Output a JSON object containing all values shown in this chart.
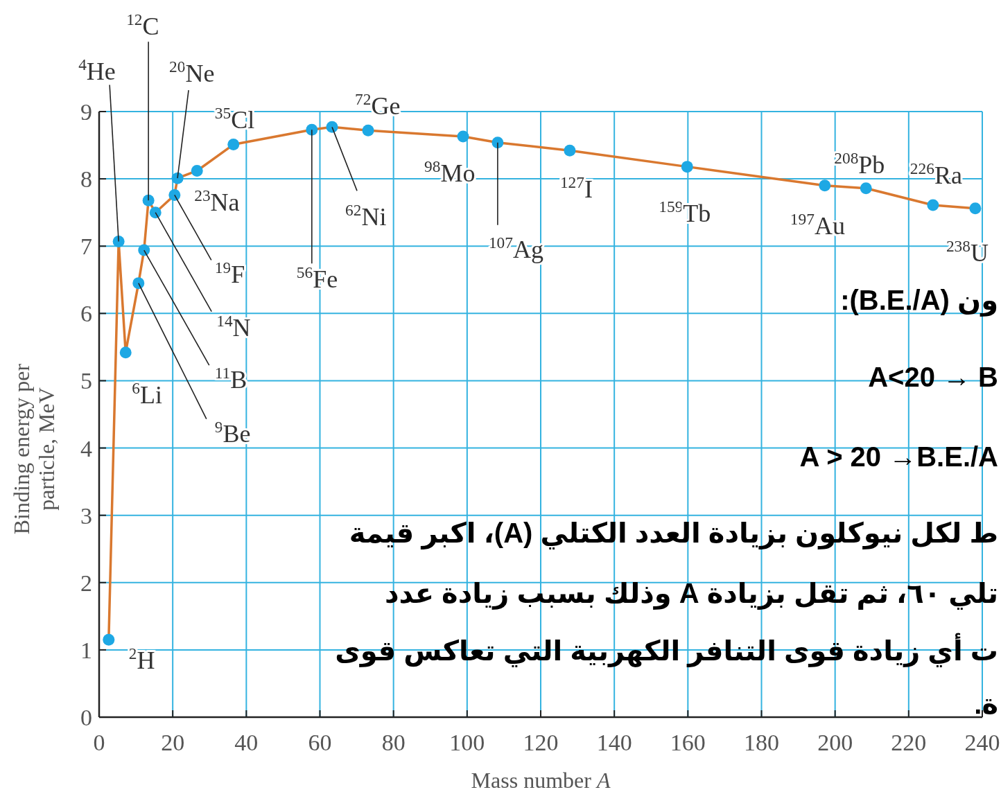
{
  "chart_data": {
    "type": "line",
    "xlabel": "Mass number A",
    "ylabel": "Binding energy per\nparticle, MeV",
    "x": [
      2.6,
      5.3,
      7.2,
      10.7,
      12.2,
      13.4,
      15.3,
      20.5,
      21.3,
      26.6,
      36.5,
      57.8,
      63.3,
      73.1,
      98.9,
      108.3,
      127.9,
      159.8,
      197.2,
      208.4,
      226.6,
      238.1
    ],
    "series": [
      {
        "color": "#d9782f",
        "colors": [
          "#1ea8e4",
          "#1ea8e4",
          "#1ea8e4",
          "#1ea8e4",
          "#1ea8e4",
          "#1ea8e4",
          "#1ea8e4",
          "#1ea8e4",
          "#1ea8e4",
          "#1ea8e4",
          "#1ea8e4",
          "#1ea8e4",
          "#1ea8e4",
          "#1ea8e4",
          "#1ea8e4",
          "#1ea8e4",
          "#1ea8e4",
          "#1ea8e4",
          "#1ea8e4",
          "#1ea8e4",
          "#1ea8e4",
          "#1ea8e4"
        ],
        "values": [
          1.15,
          7.07,
          5.42,
          6.45,
          6.94,
          7.68,
          7.5,
          7.76,
          8.01,
          8.12,
          8.51,
          8.73,
          8.77,
          8.72,
          8.63,
          8.54,
          8.42,
          8.18,
          7.9,
          7.86,
          7.61,
          7.56
        ]
      }
    ],
    "xlim": [
      0,
      240
    ],
    "ylim": [
      0,
      9
    ],
    "xticks": [
      0,
      20,
      40,
      60,
      80,
      100,
      120,
      140,
      160,
      180,
      200,
      220,
      240
    ],
    "yticks": [
      0,
      1,
      2,
      3,
      4,
      5,
      6,
      7,
      8,
      9
    ],
    "grid": true,
    "marker": "circle",
    "annotations": [
      {
        "text": "$^{2}$H",
        "x": 2.6,
        "y": 1.15
      },
      {
        "text": "$^{4}$He",
        "x": 5.3,
        "y": 7.07
      },
      {
        "text": "$^{6}$Li",
        "x": 7.2,
        "y": 5.42
      },
      {
        "text": "$^{9}$Be",
        "x": 10.7,
        "y": 6.45
      },
      {
        "text": "$^{11}$B",
        "x": 12.2,
        "y": 6.94
      },
      {
        "text": "$^{12}$C",
        "x": 13.4,
        "y": 7.68
      },
      {
        "text": "$^{14}$N",
        "x": 15.3,
        "y": 7.5
      },
      {
        "text": "$^{19}$F",
        "x": 20.5,
        "y": 7.76
      },
      {
        "text": "$^{20}$Ne",
        "x": 21.3,
        "y": 8.01
      },
      {
        "text": "$^{23}$Na",
        "x": 26.6,
        "y": 8.12
      },
      {
        "text": "$^{35}$Cl",
        "x": 36.5,
        "y": 8.51
      },
      {
        "text": "$^{56}$Fe",
        "x": 57.8,
        "y": 8.73
      },
      {
        "text": "$^{62}$Ni",
        "x": 63.3,
        "y": 8.77
      },
      {
        "text": "$^{72}$Ge",
        "x": 73.1,
        "y": 8.72
      },
      {
        "text": "$^{98}$Mo",
        "x": 98.9,
        "y": 8.63
      },
      {
        "text": "$^{107}$Ag",
        "x": 108.3,
        "y": 8.54
      },
      {
        "text": "$^{127}$I",
        "x": 127.9,
        "y": 8.42
      },
      {
        "text": "$^{159}$Tb",
        "x": 159.8,
        "y": 8.18
      },
      {
        "text": "$^{197}$Au",
        "x": 197.2,
        "y": 7.9
      },
      {
        "text": "$^{208}$Pb",
        "x": 208.4,
        "y": 7.86
      },
      {
        "text": "$^{226}$Ra",
        "x": 226.6,
        "y": 7.61
      },
      {
        "text": "$^{238}$U",
        "x": 238.1,
        "y": 7.56
      },
      "ون (B.E./A):",
      "A<20 → B",
      "A > 20 →B.E./A",
      "ط لكل نيوكلون بزيادة العدد الكتلي (A)، اكبر قيمة",
      "تلي ٦٠، ثم تقل بزيادة A وذلك بسبب زيادة عدد",
      "ت أي زيادة قوى التنافر الكهربية التي تعاكس قوى",
      "ة."
    ]
  }
}
